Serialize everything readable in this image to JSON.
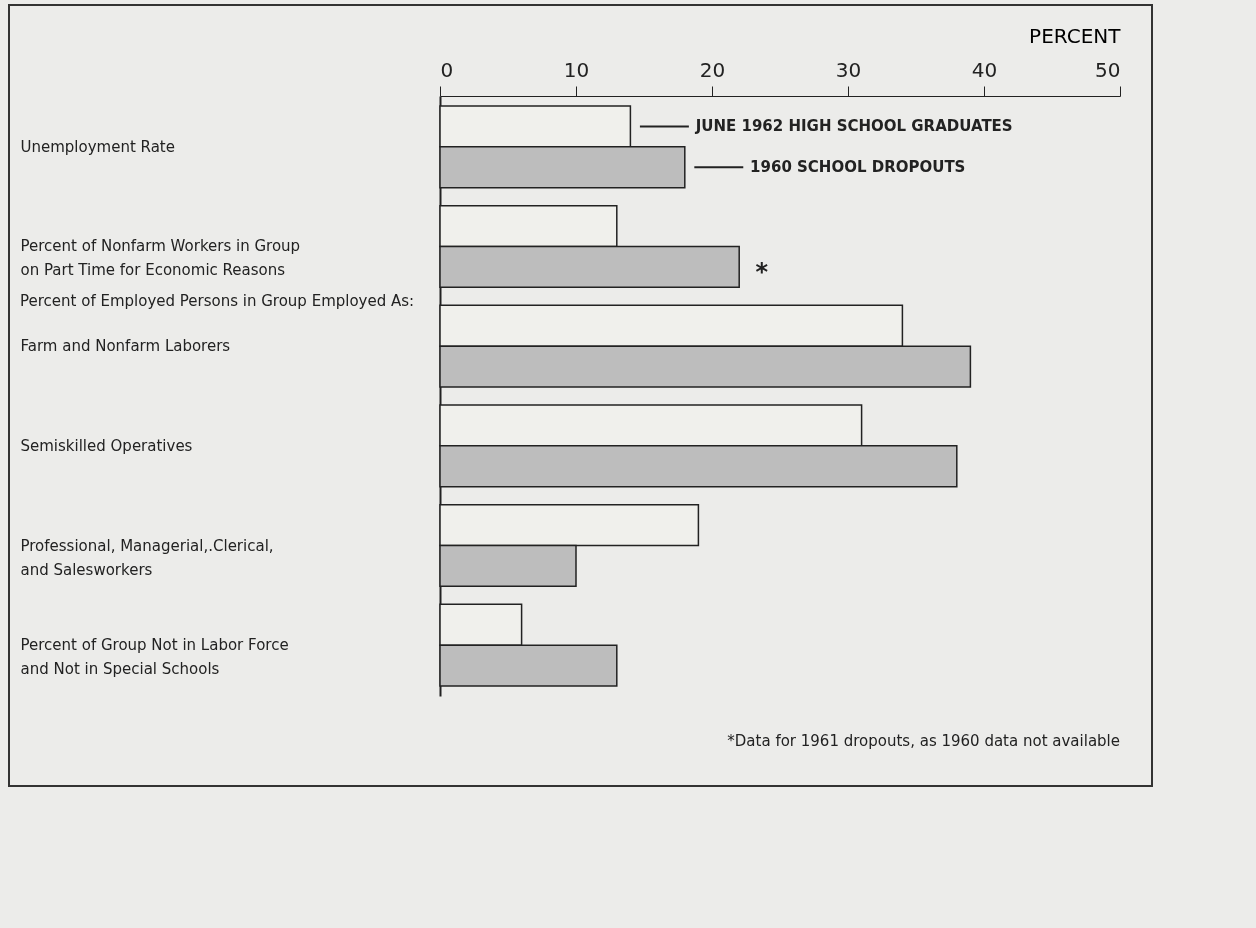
{
  "chart_data": {
    "type": "bar",
    "orientation": "horizontal",
    "xlabel": "PERCENT",
    "categories": [
      "Unemployment Rate",
      "Percent of Nonfarm Workers in Group on Part Time for Economic Reasons",
      "Farm and Nonfarm Laborers",
      "Semiskilled Operatives",
      "Professional, Managerial,.Clerical, and Salesworkers",
      "Percent of Group Not in Labor Force and Not in Special Schools"
    ],
    "series": [
      {
        "name": "JUNE 1962 HIGH SCHOOL GRADUATES",
        "color": "#f0f0ec",
        "values": [
          14,
          13,
          34,
          31,
          19,
          6
        ]
      },
      {
        "name": "1960 SCHOOL DROPOUTS",
        "color": "#bdbdbd",
        "values": [
          18,
          22,
          39,
          38,
          10,
          13
        ]
      }
    ],
    "xlim": [
      0,
      50
    ],
    "xticks": [
      0,
      10,
      20,
      30,
      40,
      50
    ],
    "grid": false,
    "legend": "top right",
    "annotations": [
      "Percent of Employed Persons in Group Employed As:",
      {
        "text": "*",
        "x": 22,
        "y": "Percent of Nonfarm Workers in Group on Part Time for Economic Reasons"
      },
      "*Data for 1961 dropouts, as 1960 data not available"
    ]
  }
}
